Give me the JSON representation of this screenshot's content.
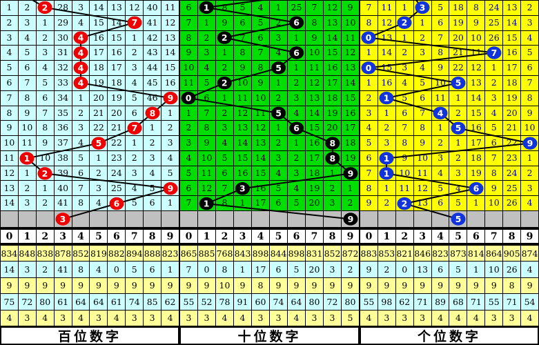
{
  "colors": {
    "hundreds_bg": "#CCFFFF",
    "tens_bg": "#00DD00",
    "units_bg": "#FFFF00",
    "units_text": "#000099",
    "forecast_row_bg": "#C0C0C0",
    "stats_yellow": "#FFFF99",
    "stats_cyan": "#CCFFFF",
    "hundreds_ball": "#EE0000",
    "tens_ball": "#000000",
    "units_ball": "#1133DD",
    "trend_line": "#000000"
  },
  "chart_data": {
    "type": "line",
    "title": "",
    "xlabel": "",
    "ylabel": "",
    "categories": [
      1,
      2,
      3,
      4,
      5,
      6,
      7,
      8,
      9,
      10,
      11,
      12,
      13,
      14,
      15
    ],
    "series": [
      {
        "name": "百位数字",
        "values": [
          2,
          7,
          4,
          4,
          4,
          4,
          9,
          8,
          7,
          5,
          1,
          2,
          9,
          6,
          3
        ]
      },
      {
        "name": "十位数字",
        "values": [
          1,
          6,
          2,
          6,
          5,
          2,
          0,
          5,
          6,
          8,
          8,
          9,
          3,
          1,
          9
        ]
      },
      {
        "name": "个位数字",
        "values": [
          3,
          2,
          0,
          7,
          0,
          5,
          1,
          4,
          5,
          9,
          1,
          1,
          6,
          2,
          5
        ]
      }
    ],
    "legend_position": "none",
    "grid": true,
    "ylim": [
      0,
      9
    ]
  },
  "panels": [
    {
      "title": "百位数字",
      "bg": "#CCFFFF",
      "ball_color": "#EE0000",
      "header": [
        "0",
        "1",
        "2",
        "3",
        "4",
        "5",
        "6",
        "7",
        "8",
        "9"
      ],
      "rows": [
        {
          "cells": [
            "1",
            "2",
            "",
            "28",
            "3",
            "14",
            "13",
            "12",
            "40",
            "11"
          ],
          "ball": {
            "col": 2,
            "label": "2"
          }
        },
        {
          "cells": [
            "2",
            "3",
            "1",
            "29",
            "4",
            "15",
            "14",
            "",
            "41",
            "12"
          ],
          "ball": {
            "col": 7,
            "label": "7"
          }
        },
        {
          "cells": [
            "3",
            "4",
            "2",
            "30",
            "",
            "16",
            "15",
            "1",
            "42",
            "13"
          ],
          "ball": {
            "col": 4,
            "label": "4"
          }
        },
        {
          "cells": [
            "4",
            "5",
            "3",
            "31",
            "",
            "17",
            "16",
            "2",
            "43",
            "14"
          ],
          "ball": {
            "col": 4,
            "label": "4"
          }
        },
        {
          "cells": [
            "5",
            "6",
            "4",
            "32",
            "",
            "18",
            "17",
            "3",
            "44",
            "15"
          ],
          "ball": {
            "col": 4,
            "label": "4"
          }
        },
        {
          "cells": [
            "6",
            "7",
            "5",
            "33",
            "",
            "19",
            "18",
            "4",
            "45",
            "16"
          ],
          "ball": {
            "col": 4,
            "label": "4"
          }
        },
        {
          "cells": [
            "7",
            "8",
            "6",
            "34",
            "1",
            "20",
            "19",
            "5",
            "46",
            ""
          ],
          "ball": {
            "col": 9,
            "label": "9"
          }
        },
        {
          "cells": [
            "8",
            "9",
            "7",
            "35",
            "2",
            "21",
            "20",
            "6",
            "",
            "1"
          ],
          "ball": {
            "col": 8,
            "label": "8"
          }
        },
        {
          "cells": [
            "9",
            "10",
            "8",
            "36",
            "3",
            "22",
            "21",
            "",
            "1",
            "2"
          ],
          "ball": {
            "col": 7,
            "label": "7"
          }
        },
        {
          "cells": [
            "10",
            "11",
            "9",
            "37",
            "4",
            "",
            "22",
            "1",
            "2",
            "3"
          ],
          "ball": {
            "col": 5,
            "label": "5"
          }
        },
        {
          "cells": [
            "11",
            "",
            "10",
            "38",
            "5",
            "1",
            "23",
            "2",
            "3",
            "4"
          ],
          "ball": {
            "col": 1,
            "label": "1"
          }
        },
        {
          "cells": [
            "12",
            "1",
            "",
            "39",
            "6",
            "2",
            "24",
            "3",
            "4",
            "5"
          ],
          "ball": {
            "col": 2,
            "label": "2"
          }
        },
        {
          "cells": [
            "13",
            "2",
            "1",
            "40",
            "7",
            "3",
            "25",
            "4",
            "5",
            ""
          ],
          "ball": {
            "col": 9,
            "label": "9"
          }
        },
        {
          "cells": [
            "14",
            "3",
            "2",
            "41",
            "8",
            "4",
            "",
            "5",
            "6",
            "1"
          ],
          "ball": {
            "col": 6,
            "label": "6"
          }
        }
      ],
      "gray_ball": {
        "col": 3,
        "label": "3"
      },
      "stats": [
        [
          "834",
          "848",
          "838",
          "878",
          "852",
          "819",
          "882",
          "894",
          "888",
          "823"
        ],
        [
          "14",
          "3",
          "2",
          "41",
          "8",
          "4",
          "0",
          "5",
          "6",
          "1"
        ],
        [
          "9",
          "9",
          "9",
          "9",
          "9",
          "9",
          "9",
          "9",
          "9",
          "9"
        ],
        [
          "75",
          "72",
          "80",
          "61",
          "64",
          "64",
          "61",
          "74",
          "85",
          "62"
        ],
        [
          "4",
          "3",
          "4",
          "3",
          "4",
          "3",
          "4",
          "3",
          "3",
          "4"
        ]
      ]
    },
    {
      "title": "十位数字",
      "bg": "#00DD00",
      "ball_color": "#000000",
      "header": [
        "0",
        "1",
        "2",
        "3",
        "4",
        "5",
        "6",
        "7",
        "8",
        "9"
      ],
      "rows": [
        {
          "cells": [
            "6",
            "",
            "8",
            "5",
            "4",
            "1",
            "25",
            "7",
            "12",
            "9"
          ],
          "ball": {
            "col": 1,
            "label": "1"
          }
        },
        {
          "cells": [
            "7",
            "1",
            "9",
            "6",
            "5",
            "2",
            "",
            "8",
            "13",
            "10"
          ],
          "ball": {
            "col": 6,
            "label": "6"
          }
        },
        {
          "cells": [
            "8",
            "2",
            "",
            "7",
            "6",
            "3",
            "1",
            "9",
            "14",
            "11"
          ],
          "ball": {
            "col": 2,
            "label": "2"
          }
        },
        {
          "cells": [
            "9",
            "3",
            "1",
            "8",
            "7",
            "4",
            "",
            "10",
            "15",
            "12"
          ],
          "ball": {
            "col": 6,
            "label": "6"
          }
        },
        {
          "cells": [
            "10",
            "4",
            "2",
            "9",
            "8",
            "",
            "1",
            "11",
            "16",
            "13"
          ],
          "ball": {
            "col": 5,
            "label": "5"
          }
        },
        {
          "cells": [
            "11",
            "5",
            "",
            "10",
            "9",
            "1",
            "2",
            "12",
            "17",
            "14"
          ],
          "ball": {
            "col": 2,
            "label": "2"
          }
        },
        {
          "cells": [
            "",
            "6",
            "1",
            "11",
            "10",
            "2",
            "3",
            "13",
            "18",
            "15"
          ],
          "ball": {
            "col": 0,
            "label": "0"
          }
        },
        {
          "cells": [
            "1",
            "7",
            "2",
            "12",
            "11",
            "",
            "4",
            "14",
            "19",
            "16"
          ],
          "ball": {
            "col": 5,
            "label": "5"
          }
        },
        {
          "cells": [
            "2",
            "8",
            "3",
            "13",
            "12",
            "1",
            "",
            "15",
            "20",
            "17"
          ],
          "ball": {
            "col": 6,
            "label": "6"
          }
        },
        {
          "cells": [
            "3",
            "9",
            "4",
            "14",
            "13",
            "2",
            "1",
            "16",
            "",
            "18"
          ],
          "ball": {
            "col": 8,
            "label": "8"
          }
        },
        {
          "cells": [
            "4",
            "10",
            "5",
            "15",
            "14",
            "3",
            "2",
            "17",
            "",
            "19"
          ],
          "ball": {
            "col": 8,
            "label": "8"
          }
        },
        {
          "cells": [
            "5",
            "11",
            "6",
            "16",
            "15",
            "4",
            "3",
            "18",
            "1",
            ""
          ],
          "ball": {
            "col": 9,
            "label": "9"
          }
        },
        {
          "cells": [
            "6",
            "12",
            "7",
            "",
            "16",
            "5",
            "4",
            "19",
            "2",
            "1"
          ],
          "ball": {
            "col": 3,
            "label": "3"
          }
        },
        {
          "cells": [
            "7",
            "",
            "8",
            "1",
            "17",
            "6",
            "5",
            "20",
            "3",
            "2"
          ],
          "ball": {
            "col": 1,
            "label": "1"
          }
        }
      ],
      "gray_ball": {
        "col": 9,
        "label": "9"
      },
      "stats": [
        [
          "865",
          "885",
          "768",
          "843",
          "898",
          "844",
          "898",
          "831",
          "852",
          "872"
        ],
        [
          "7",
          "0",
          "8",
          "1",
          "17",
          "6",
          "5",
          "20",
          "3",
          "2"
        ],
        [
          "9",
          "9",
          "10",
          "9",
          "8",
          "9",
          "9",
          "9",
          "9",
          "9"
        ],
        [
          "55",
          "52",
          "78",
          "91",
          "60",
          "74",
          "64",
          "80",
          "72",
          "80"
        ],
        [
          "3",
          "3",
          "4",
          "4",
          "3",
          "3",
          "4",
          "3",
          "3",
          "5"
        ]
      ]
    },
    {
      "title": "个位数字",
      "bg": "#FFFF00",
      "ball_color": "#1133DD",
      "header": [
        "0",
        "1",
        "2",
        "3",
        "4",
        "5",
        "6",
        "7",
        "8",
        "9"
      ],
      "rows": [
        {
          "cells": [
            "7",
            "11",
            "1",
            "",
            "5",
            "18",
            "8",
            "24",
            "13",
            "2"
          ],
          "ball": {
            "col": 3,
            "label": "3"
          }
        },
        {
          "cells": [
            "8",
            "12",
            "",
            "1",
            "6",
            "19",
            "9",
            "25",
            "14",
            "3"
          ],
          "ball": {
            "col": 2,
            "label": "2"
          }
        },
        {
          "cells": [
            "",
            "13",
            "1",
            "2",
            "7",
            "20",
            "10",
            "26",
            "15",
            "4"
          ],
          "ball": {
            "col": 0,
            "label": "0"
          }
        },
        {
          "cells": [
            "1",
            "14",
            "2",
            "3",
            "8",
            "21",
            "11",
            "",
            "16",
            "5"
          ],
          "ball": {
            "col": 7,
            "label": "7"
          }
        },
        {
          "cells": [
            "",
            "15",
            "3",
            "4",
            "9",
            "22",
            "12",
            "1",
            "17",
            "6"
          ],
          "ball": {
            "col": 0,
            "label": "0"
          }
        },
        {
          "cells": [
            "1",
            "16",
            "4",
            "5",
            "10",
            "",
            "13",
            "2",
            "18",
            "7"
          ],
          "ball": {
            "col": 5,
            "label": "5"
          }
        },
        {
          "cells": [
            "2",
            "",
            "5",
            "6",
            "11",
            "1",
            "14",
            "3",
            "19",
            "8"
          ],
          "ball": {
            "col": 1,
            "label": "1"
          }
        },
        {
          "cells": [
            "3",
            "1",
            "6",
            "7",
            "",
            "2",
            "15",
            "4",
            "20",
            "9"
          ],
          "ball": {
            "col": 4,
            "label": "4"
          }
        },
        {
          "cells": [
            "4",
            "2",
            "7",
            "8",
            "1",
            "",
            "16",
            "5",
            "21",
            "10"
          ],
          "ball": {
            "col": 5,
            "label": "5"
          }
        },
        {
          "cells": [
            "5",
            "3",
            "8",
            "9",
            "2",
            "1",
            "17",
            "6",
            "22",
            ""
          ],
          "ball": {
            "col": 9,
            "label": "9"
          }
        },
        {
          "cells": [
            "6",
            "",
            "9",
            "10",
            "3",
            "2",
            "18",
            "7",
            "23",
            "1"
          ],
          "ball": {
            "col": 1,
            "label": "1"
          }
        },
        {
          "cells": [
            "7",
            "",
            "10",
            "11",
            "4",
            "3",
            "19",
            "8",
            "24",
            "2"
          ],
          "ball": {
            "col": 1,
            "label": "1"
          }
        },
        {
          "cells": [
            "8",
            "1",
            "11",
            "12",
            "5",
            "4",
            "",
            "9",
            "25",
            "3"
          ],
          "ball": {
            "col": 6,
            "label": "6"
          }
        },
        {
          "cells": [
            "9",
            "2",
            "",
            "13",
            "6",
            "5",
            "1",
            "10",
            "26",
            "4"
          ],
          "ball": {
            "col": 2,
            "label": "2"
          }
        }
      ],
      "gray_ball": {
        "col": 5,
        "label": "5"
      },
      "stats": [
        [
          "883",
          "853",
          "821",
          "846",
          "823",
          "873",
          "814",
          "864",
          "905",
          "874"
        ],
        [
          "9",
          "2",
          "0",
          "13",
          "6",
          "5",
          "1",
          "10",
          "26",
          "4"
        ],
        [
          "9",
          "9",
          "9",
          "9",
          "9",
          "9",
          "9",
          "9",
          "8",
          "9"
        ],
        [
          "55",
          "98",
          "62",
          "71",
          "89",
          "68",
          "71",
          "55",
          "71",
          "54"
        ],
        [
          "4",
          "3",
          "3",
          "3",
          "4",
          "4",
          "4",
          "3",
          "3",
          "4"
        ]
      ]
    }
  ]
}
